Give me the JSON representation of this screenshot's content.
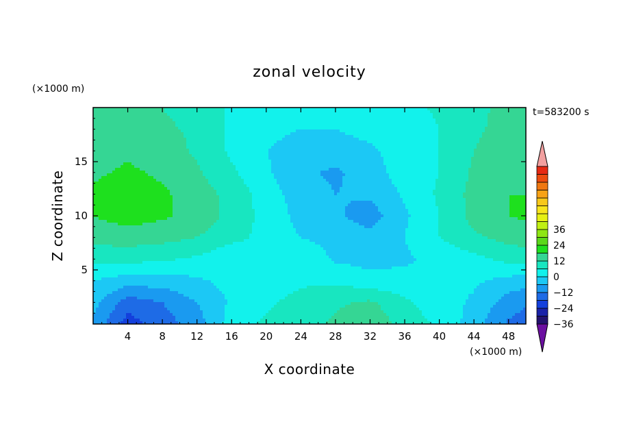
{
  "chart_data": {
    "type": "heatmap",
    "title": "zonal velocity",
    "xlabel": "X coordinate",
    "ylabel": "Z coordinate",
    "x_unit": "(×1000 m)",
    "y_unit": "(×1000 m)",
    "time_label": "t=583200 s",
    "xlim": [
      0,
      50
    ],
    "ylim": [
      0,
      20
    ],
    "x_ticks": [
      4,
      8,
      12,
      16,
      20,
      24,
      28,
      32,
      36,
      40,
      44,
      48
    ],
    "y_ticks": [
      5,
      10,
      15
    ],
    "colorbar": {
      "min": -42,
      "max": 42,
      "step": 6,
      "tick_labels": [
        36,
        24,
        12,
        0,
        -12,
        -24,
        -36
      ],
      "colors": [
        "#6b0fa0",
        "#23126e",
        "#1a22a8",
        "#1440dc",
        "#1e6be6",
        "#1a9af0",
        "#1cc8f5",
        "#12f2ec",
        "#18e6c0",
        "#35d694",
        "#1ee01e",
        "#5ad81a",
        "#8ee614",
        "#c0f014",
        "#e6f014",
        "#f8e41c",
        "#f8c81a",
        "#f8a216",
        "#f07812",
        "#ec4c10",
        "#e62a14",
        "#f2a0a0"
      ]
    },
    "field_samples": {
      "x_nodes": [
        0,
        4,
        8,
        12,
        16,
        20,
        24,
        28,
        32,
        36,
        40,
        44,
        48,
        50
      ],
      "z_nodes": [
        0,
        2,
        4,
        6,
        8,
        10,
        12,
        14,
        16,
        18,
        20
      ],
      "u": [
        [
          -13,
          -27,
          -21,
          -15,
          -3,
          1,
          4,
          7,
          11,
          3,
          -1,
          -9,
          -19,
          -21
        ],
        [
          -10,
          -21,
          -18,
          -12,
          -5,
          -1,
          2,
          5,
          7,
          1,
          -3,
          -7,
          -15,
          -17
        ],
        [
          -6,
          -9,
          -9,
          -7,
          -4,
          -3,
          -1,
          -1,
          -4,
          -4,
          -5,
          -5,
          -8,
          -9
        ],
        [
          2,
          2,
          1,
          -1,
          -5,
          -3,
          -1,
          -7,
          -8,
          -7,
          -4,
          -2,
          2,
          2
        ],
        [
          8,
          9,
          8,
          6,
          2,
          -2,
          -6,
          -8,
          -10,
          -6,
          0,
          5,
          8,
          9
        ],
        [
          12,
          15,
          13,
          10,
          4,
          -2,
          -8,
          -11,
          -15,
          -7,
          0,
          8,
          12,
          13
        ],
        [
          13,
          15,
          13,
          9,
          4,
          -3,
          -9,
          -12,
          -11,
          -5,
          1,
          8,
          12,
          12
        ],
        [
          11,
          13,
          11,
          7,
          1,
          -5,
          -11,
          -13,
          -9,
          -3,
          0,
          7,
          10,
          11
        ],
        [
          9,
          11,
          9,
          5,
          -1,
          -6,
          -9,
          -9,
          -7,
          -3,
          0,
          6,
          9,
          10
        ],
        [
          8,
          8,
          7,
          5,
          -1,
          -4,
          -6,
          -6,
          -4,
          -3,
          0,
          5,
          8,
          8
        ],
        [
          7,
          7,
          6,
          4,
          -1,
          -3,
          -4,
          -4,
          -3,
          -2,
          1,
          5,
          7,
          7
        ]
      ]
    }
  }
}
